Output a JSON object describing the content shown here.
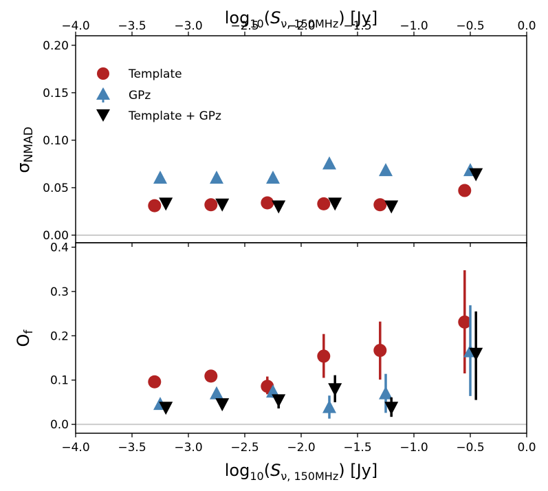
{
  "chart_data": {
    "type": "scatter",
    "x_axis": {
      "label_main": "log",
      "label_sub": "10",
      "label_open": "(",
      "label_var": "S",
      "label_var_sub": "ν, 150MHz",
      "label_close": ") [Jy]",
      "xlim": [
        -4.0,
        0.0
      ],
      "ticks": [
        -4.0,
        -3.5,
        -3.0,
        -2.5,
        -2.0,
        -1.5,
        -1.0,
        -0.5,
        0.0
      ],
      "tick_labels": [
        "−4.0",
        "−3.5",
        "−3.0",
        "−2.5",
        "−2.0",
        "−1.5",
        "−1.0",
        "−0.5",
        "0.0"
      ]
    },
    "panels": [
      {
        "id": "top",
        "ylabel_main": "σ",
        "ylabel_sub": "NMAD",
        "ylim": [
          -0.008,
          0.21
        ],
        "yticks": [
          0.0,
          0.05,
          0.1,
          0.15,
          0.2
        ],
        "ytick_labels": [
          "0.00",
          "0.05",
          "0.10",
          "0.15",
          "0.20"
        ],
        "zero_line": true,
        "series": [
          {
            "name": "Template",
            "x": [
              -3.3,
              -2.8,
              -2.3,
              -1.8,
              -1.3,
              -0.55
            ],
            "y": [
              0.031,
              0.032,
              0.034,
              0.033,
              0.032,
              0.047
            ],
            "yerr_low": [
              0,
              0,
              0,
              0,
              0,
              0
            ],
            "yerr_high": [
              0,
              0,
              0,
              0,
              0,
              0
            ]
          },
          {
            "name": "GPz",
            "x": [
              -3.25,
              -2.75,
              -2.25,
              -1.75,
              -1.25,
              -0.5
            ],
            "y": [
              0.06,
              0.06,
              0.06,
              0.075,
              0.068,
              0.068
            ],
            "yerr_low": [
              0,
              0,
              0,
              0,
              0,
              0
            ],
            "yerr_high": [
              0,
              0,
              0,
              0,
              0,
              0
            ]
          },
          {
            "name": "Template + GPz",
            "x": [
              -3.2,
              -2.7,
              -2.2,
              -1.7,
              -1.2,
              -0.45
            ],
            "y": [
              0.033,
              0.032,
              0.03,
              0.033,
              0.03,
              0.064
            ],
            "yerr_low": [
              0,
              0,
              0,
              0,
              0,
              0
            ],
            "yerr_high": [
              0,
              0,
              0,
              0,
              0,
              0
            ]
          }
        ]
      },
      {
        "id": "bottom",
        "ylabel_main": "O",
        "ylabel_sub": "f",
        "ylim": [
          -0.02,
          0.41
        ],
        "yticks": [
          0.0,
          0.1,
          0.2,
          0.3,
          0.4
        ],
        "ytick_labels": [
          "0.0",
          "0.1",
          "0.2",
          "0.3",
          "0.4"
        ],
        "zero_line": true,
        "series": [
          {
            "name": "Template",
            "x": [
              -3.3,
              -2.8,
              -2.3,
              -1.8,
              -1.3,
              -0.55
            ],
            "y": [
              0.096,
              0.109,
              0.086,
              0.154,
              0.167,
              0.231
            ],
            "yerr_low": [
              0.012,
              0.006,
              0.018,
              0.049,
              0.066,
              0.116
            ],
            "yerr_high": [
              0.012,
              0.006,
              0.022,
              0.05,
              0.065,
              0.117
            ]
          },
          {
            "name": "GPz",
            "x": [
              -3.25,
              -2.75,
              -2.25,
              -1.75,
              -1.25,
              -0.5
            ],
            "y": [
              0.045,
              0.069,
              0.073,
              0.038,
              0.069,
              0.164
            ],
            "yerr_low": [
              0.01,
              0.0,
              0.013,
              0.025,
              0.043,
              0.1
            ],
            "yerr_high": [
              0.007,
              0.0,
              0.0,
              0.027,
              0.045,
              0.105
            ]
          },
          {
            "name": "Template + GPz",
            "x": [
              -3.2,
              -2.7,
              -2.2,
              -1.7,
              -1.2,
              -0.45
            ],
            "y": [
              0.037,
              0.045,
              0.054,
              0.079,
              0.037,
              0.159
            ],
            "yerr_low": [
              0.0,
              0.0,
              0.018,
              0.029,
              0.02,
              0.104
            ],
            "yerr_high": [
              0.0,
              0.0,
              0.013,
              0.032,
              0.024,
              0.096
            ]
          }
        ]
      }
    ],
    "legend": {
      "placement": "upper-left of top panel",
      "entries": [
        {
          "label": "Template",
          "marker": "circle",
          "color": "#b22222"
        },
        {
          "label": "GPz",
          "marker": "triangle-up",
          "color": "#4682b4"
        },
        {
          "label": "Template + GPz",
          "marker": "triangle-down",
          "color": "#000000"
        }
      ]
    },
    "colors": {
      "Template": "#b22222",
      "GPz": "#4682b4",
      "Template + GPz": "#000000",
      "zero_line": "#cccccc"
    }
  }
}
